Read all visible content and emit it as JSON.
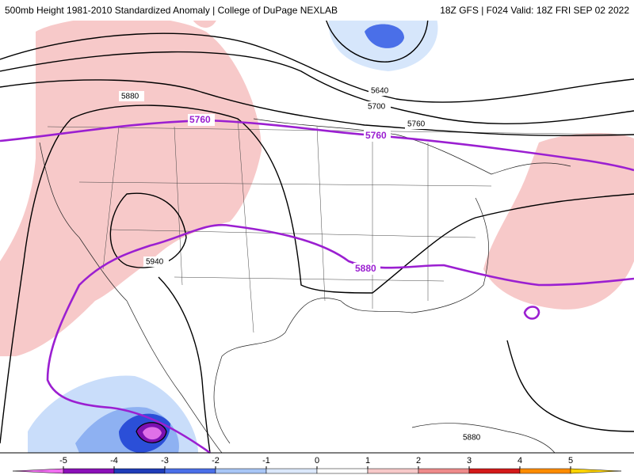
{
  "header": {
    "title": "500mb Height 1981-2010 Standardized Anomaly | College of DuPage NEXLAB",
    "valid": "18Z GFS | F024 Valid: 18Z FRI SEP 02 2022"
  },
  "contour_labels": [
    5880,
    5640,
    5700,
    5760,
    5940,
    5880
  ],
  "highlight_labels": [
    5760,
    5760,
    5880
  ],
  "colorbar": {
    "ticks": [
      -5,
      -4,
      -3,
      -2,
      -1,
      0,
      1,
      2,
      3,
      4,
      5
    ]
  }
}
